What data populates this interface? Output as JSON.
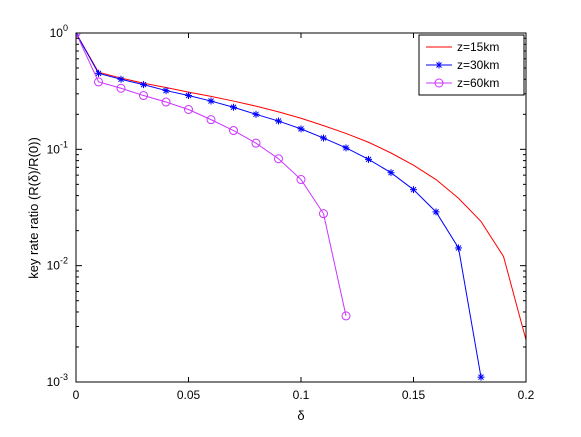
{
  "chart_data": {
    "type": "line",
    "xlabel": "δ",
    "ylabel": "key rate ratio (R(δ)/R(0))",
    "xlim": [
      0,
      0.2
    ],
    "ylim": [
      0.001,
      1
    ],
    "yscale": "log",
    "grid": false,
    "legend_position": "top-right",
    "x_ticks": [
      "0",
      "0.05",
      "0.1",
      "0.15",
      "0.2"
    ],
    "y_ticks": [
      {
        "base": "10",
        "exp": "0"
      },
      {
        "base": "10",
        "exp": "-1"
      },
      {
        "base": "10",
        "exp": "-2"
      },
      {
        "base": "10",
        "exp": "-3"
      }
    ],
    "series": [
      {
        "name": "z=15km",
        "color": "#ff0000",
        "marker": "none",
        "x": [
          0,
          0.01,
          0.02,
          0.03,
          0.04,
          0.05,
          0.06,
          0.07,
          0.08,
          0.09,
          0.1,
          0.11,
          0.12,
          0.13,
          0.14,
          0.15,
          0.16,
          0.17,
          0.18,
          0.19,
          0.2
        ],
        "y": [
          1.0,
          0.46,
          0.41,
          0.37,
          0.34,
          0.31,
          0.285,
          0.26,
          0.235,
          0.21,
          0.185,
          0.16,
          0.137,
          0.115,
          0.093,
          0.073,
          0.055,
          0.038,
          0.024,
          0.012,
          0.0023
        ]
      },
      {
        "name": "z=30km",
        "color": "#0000ff",
        "marker": "star",
        "x": [
          0,
          0.01,
          0.02,
          0.03,
          0.04,
          0.05,
          0.06,
          0.07,
          0.08,
          0.09,
          0.1,
          0.11,
          0.12,
          0.13,
          0.14,
          0.15,
          0.16,
          0.17,
          0.18
        ],
        "y": [
          1.0,
          0.45,
          0.4,
          0.36,
          0.32,
          0.29,
          0.26,
          0.23,
          0.2,
          0.175,
          0.15,
          0.125,
          0.103,
          0.082,
          0.063,
          0.045,
          0.029,
          0.0142,
          0.0011
        ]
      },
      {
        "name": "z=60km",
        "color": "#cc33ff",
        "marker": "circle",
        "x": [
          0,
          0.01,
          0.02,
          0.03,
          0.04,
          0.05,
          0.06,
          0.07,
          0.08,
          0.09,
          0.1,
          0.11,
          0.12
        ],
        "y": [
          1.0,
          0.38,
          0.335,
          0.29,
          0.255,
          0.22,
          0.18,
          0.145,
          0.113,
          0.083,
          0.055,
          0.028,
          0.0037
        ]
      }
    ]
  }
}
